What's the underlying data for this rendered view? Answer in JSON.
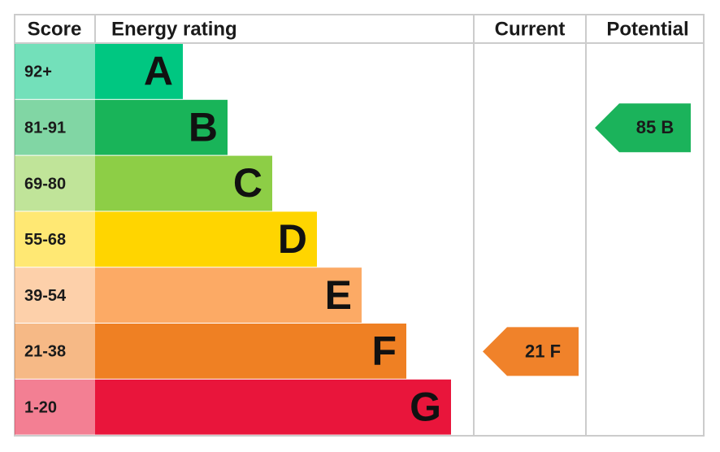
{
  "header": {
    "score": "Score",
    "energy_rating": "Energy rating",
    "current": "Current",
    "potential": "Potential"
  },
  "bands": [
    {
      "score": "92+",
      "rating": "A",
      "color": "#00c781"
    },
    {
      "score": "81-91",
      "rating": "B",
      "color": "#19b459"
    },
    {
      "score": "69-80",
      "rating": "C",
      "color": "#8dce46"
    },
    {
      "score": "55-68",
      "rating": "D",
      "color": "#ffd500"
    },
    {
      "score": "39-54",
      "rating": "E",
      "color": "#fcaa65"
    },
    {
      "score": "21-38",
      "rating": "F",
      "color": "#ef8023"
    },
    {
      "score": "1-20",
      "rating": "G",
      "color": "#e9153b"
    }
  ],
  "current": {
    "score": 21,
    "rating": "F",
    "color": "#f0822a"
  },
  "potential": {
    "score": 85,
    "rating": "B",
    "color": "#1bb35b"
  }
}
